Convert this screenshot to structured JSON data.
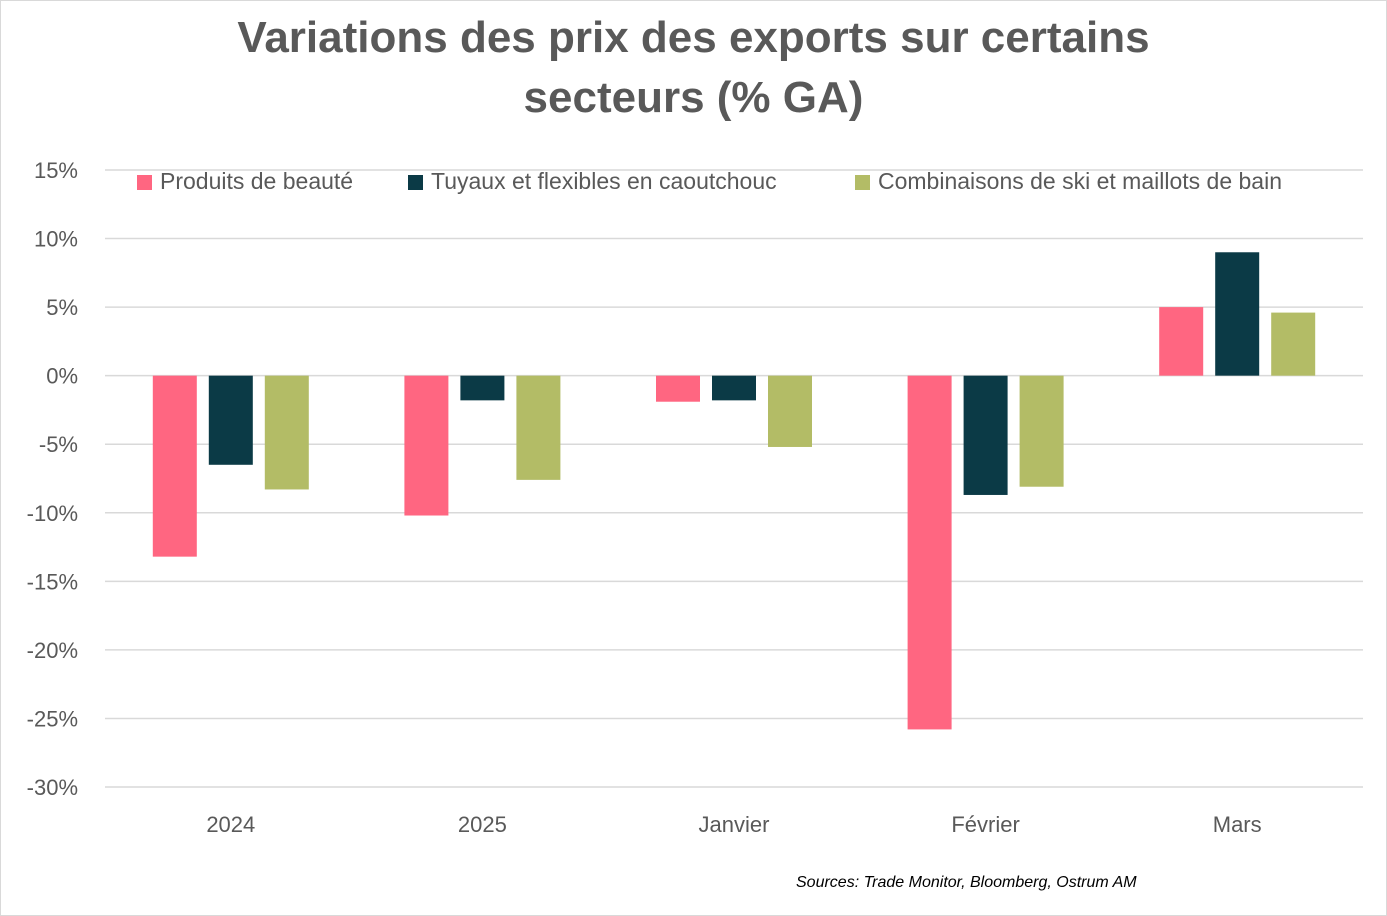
{
  "chart_data": {
    "type": "bar",
    "title": "Variations des prix des exports sur certains secteurs (% GA)",
    "title_lines": [
      "Variations des prix des exports sur certains",
      "secteurs (% GA)"
    ],
    "categories": [
      "2024",
      "2025",
      "Janvier",
      "Février",
      "Mars"
    ],
    "series": [
      {
        "name": "Produits de beauté",
        "color": "#FF6681",
        "values": [
          -13.2,
          -10.2,
          -1.9,
          -25.8,
          5.0
        ]
      },
      {
        "name": "Tuyaux et flexibles en caoutchouc",
        "color": "#0B3A46",
        "values": [
          -6.5,
          -1.8,
          -1.8,
          -8.7,
          9.0
        ]
      },
      {
        "name": "Combinaisons de ski et maillots de bain",
        "color": "#B3BC66",
        "values": [
          -8.3,
          -7.6,
          -5.2,
          -8.1,
          4.6
        ]
      }
    ],
    "yticks": [
      "15%",
      "10%",
      "5%",
      "0%",
      "-5%",
      "-10%",
      "-15%",
      "-20%",
      "-25%",
      "-30%"
    ],
    "ylim": [
      -30,
      15
    ],
    "grid": true,
    "legend": "top",
    "source": "Sources: Trade Monitor, Bloomberg, Ostrum AM"
  }
}
